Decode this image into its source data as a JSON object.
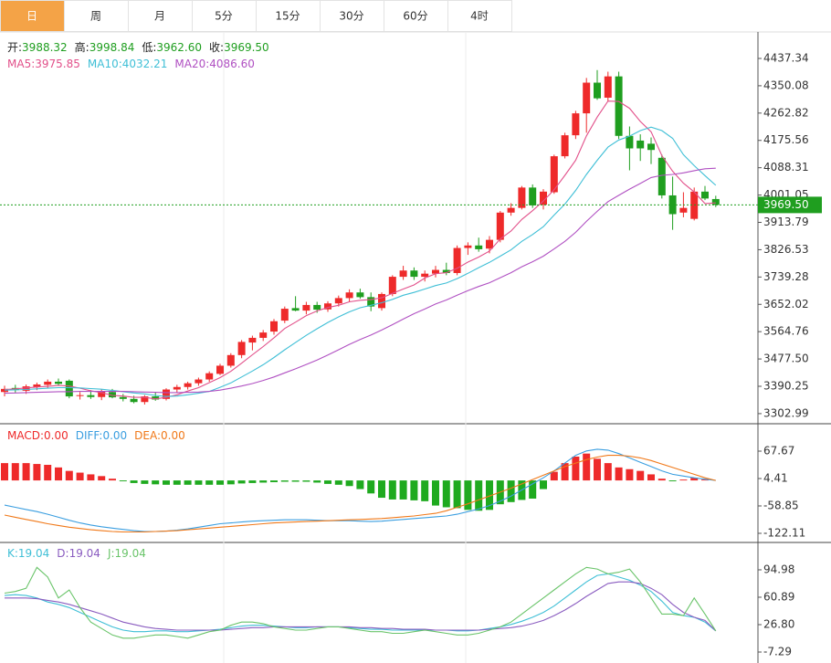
{
  "tabs": [
    "日",
    "周",
    "月",
    "5分",
    "15分",
    "30分",
    "60分",
    "4时"
  ],
  "active_tab": 0,
  "chart_data": [
    {
      "type": "candlestick",
      "up_color": "#ee2a2a",
      "down_color": "#1f9e1f",
      "ylim": [
        3273.6,
        4521.9
      ],
      "yticks": [
        4437.34,
        4350.08,
        4262.82,
        4175.56,
        4088.31,
        4001.05,
        3913.79,
        3826.53,
        3739.28,
        3652.02,
        3564.76,
        {
          "value": 3477.5,
          "label": "3477.50"
        },
        3390.25,
        3302.99
      ],
      "last_price": {
        "value": 3969.5,
        "label": "3969.50"
      },
      "ohlc_legend": [
        {
          "label": "开:",
          "value": "3988.32"
        },
        {
          "label": "高:",
          "value": "3998.84"
        },
        {
          "label": "低:",
          "value": "3962.60"
        },
        {
          "label": "收:",
          "value": "3969.50"
        }
      ],
      "ohlc_legend_color": "#1f9e1f",
      "open": [
        3372,
        3385,
        3376,
        3388,
        3395,
        3405,
        3408,
        3360,
        3362,
        3356,
        3372,
        3356,
        3350,
        3340,
        3358,
        3350,
        3380,
        3388,
        3400,
        3412,
        3430,
        3456,
        3490,
        3530,
        3545,
        3565,
        3600,
        3640,
        3632,
        3650,
        3636,
        3655,
        3672,
        3690,
        3675,
        3640,
        3685,
        3740,
        3760,
        3740,
        3750,
        3762,
        3752,
        3832,
        3840,
        3830,
        3858,
        3945,
        3960,
        4025,
        3970,
        4010,
        4125,
        4192,
        4262,
        4360,
        4312,
        4380,
        4190,
        4175,
        4165,
        4120,
        4000,
        3945,
        3925,
        4012,
        3988.32
      ],
      "high": [
        3392,
        3395,
        3396,
        3402,
        3412,
        3415,
        3412,
        3372,
        3378,
        3380,
        3382,
        3366,
        3360,
        3362,
        3372,
        3384,
        3395,
        3405,
        3418,
        3438,
        3462,
        3496,
        3538,
        3552,
        3570,
        3605,
        3645,
        3678,
        3660,
        3660,
        3662,
        3680,
        3700,
        3702,
        3690,
        3690,
        3745,
        3775,
        3770,
        3760,
        3775,
        3785,
        3840,
        3850,
        3865,
        3870,
        3950,
        3975,
        4030,
        4035,
        4020,
        4130,
        4200,
        4270,
        4375,
        4400,
        4395,
        4395,
        4220,
        4195,
        4185,
        4130,
        4060,
        4010,
        4025,
        4030,
        3998.84
      ],
      "low": [
        3358,
        3370,
        3366,
        3378,
        3385,
        3392,
        3352,
        3348,
        3350,
        3346,
        3352,
        3342,
        3336,
        3332,
        3344,
        3345,
        3370,
        3380,
        3392,
        3405,
        3426,
        3450,
        3480,
        3505,
        3535,
        3555,
        3592,
        3630,
        3620,
        3625,
        3628,
        3645,
        3660,
        3670,
        3630,
        3632,
        3678,
        3730,
        3730,
        3725,
        3738,
        3745,
        3745,
        3810,
        3820,
        3815,
        3850,
        3935,
        3955,
        3960,
        3955,
        4005,
        4118,
        4180,
        4200,
        4305,
        4300,
        4180,
        4080,
        4110,
        4100,
        3990,
        3890,
        3930,
        3920,
        3985,
        3962.6
      ],
      "close": [
        3382,
        3378,
        3390,
        3396,
        3405,
        3398,
        3358,
        3362,
        3356,
        3374,
        3355,
        3350,
        3340,
        3358,
        3348,
        3380,
        3388,
        3400,
        3412,
        3432,
        3456,
        3490,
        3532,
        3545,
        3562,
        3598,
        3638,
        3632,
        3650,
        3635,
        3655,
        3672,
        3690,
        3675,
        3645,
        3685,
        3740,
        3760,
        3740,
        3750,
        3762,
        3752,
        3832,
        3840,
        3828,
        3858,
        3945,
        3960,
        4025,
        3968,
        4012,
        4125,
        4192,
        4262,
        4360,
        4310,
        4380,
        4190,
        4150,
        4150,
        4145,
        4000,
        3940,
        3960,
        4012,
        3990,
        3969.5
      ],
      "series": [
        {
          "label": "MA5:",
          "legend_value": "3975.85",
          "color": "#e2508a",
          "values": [
            3380,
            3382,
            3385,
            3388,
            3390,
            3393,
            3391,
            3384,
            3376,
            3370,
            3361,
            3359,
            3355,
            3355,
            3350,
            3355,
            3363,
            3375,
            3386,
            3402,
            3418,
            3438,
            3464,
            3491,
            3517,
            3545,
            3575,
            3595,
            3616,
            3631,
            3642,
            3649,
            3660,
            3665,
            3667,
            3673,
            3687,
            3701,
            3714,
            3736,
            3750,
            3753,
            3767,
            3787,
            3803,
            3822,
            3861,
            3886,
            3923,
            3951,
            3982,
            4018,
            4064,
            4112,
            4190,
            4250,
            4301,
            4300,
            4278,
            4236,
            4203,
            4127,
            4077,
            4039,
            4011,
            3974,
            3975.85
          ]
        },
        {
          "label": "MA10:",
          "legend_value": "4032.21",
          "color": "#3fbfd6",
          "values": [
            3378,
            3379,
            3380,
            3382,
            3384,
            3386,
            3386,
            3385,
            3383,
            3381,
            3377,
            3373,
            3369,
            3366,
            3361,
            3358,
            3359,
            3363,
            3368,
            3374,
            3387,
            3401,
            3420,
            3439,
            3459,
            3482,
            3507,
            3530,
            3553,
            3574,
            3594,
            3612,
            3628,
            3641,
            3649,
            3657,
            3668,
            3681,
            3690,
            3701,
            3712,
            3720,
            3734,
            3751,
            3769,
            3786,
            3806,
            3826,
            3853,
            3875,
            3900,
            3937,
            3972,
            4016,
            4067,
            4112,
            4154,
            4177,
            4189,
            4207,
            4218,
            4207,
            4182,
            4130,
            4095,
            4063,
            4032.21
          ]
        },
        {
          "label": "MA20:",
          "legend_value": "4086.60",
          "color": "#b050c2",
          "values": [
            3368,
            3369,
            3370,
            3371,
            3372,
            3373,
            3373,
            3374,
            3374,
            3374,
            3374,
            3374,
            3373,
            3372,
            3371,
            3370,
            3370,
            3371,
            3372,
            3374,
            3378,
            3384,
            3391,
            3399,
            3409,
            3420,
            3433,
            3446,
            3460,
            3474,
            3490,
            3507,
            3524,
            3540,
            3554,
            3570,
            3587,
            3605,
            3622,
            3637,
            3653,
            3666,
            3681,
            3696,
            3709,
            3721,
            3737,
            3753,
            3772,
            3788,
            3806,
            3829,
            3853,
            3882,
            3917,
            3949,
            3980,
            4000,
            4020,
            4038,
            4057,
            4064,
            4067,
            4072,
            4079,
            4085,
            4086.6
          ]
        }
      ]
    },
    {
      "type": "macd",
      "ylim": [
        -141.1,
        128.8
      ],
      "yticks": [
        67.67,
        4.41,
        -58.85,
        -122.11
      ],
      "legend": [
        {
          "label": "MACD:",
          "value": "0.00",
          "color": "#ee2a2a"
        },
        {
          "label": "DIFF:",
          "value": "0.00",
          "color": "#3a9ee0"
        },
        {
          "label": "DEA:",
          "value": "0.00",
          "color": "#f07818"
        }
      ],
      "up_color": "#ee2a2a",
      "down_color": "#1faa1f",
      "histogram": [
        40,
        40,
        40,
        38,
        36,
        30,
        22,
        18,
        14,
        10,
        4,
        -2,
        -6,
        -8,
        -9,
        -10,
        -10,
        -10,
        -10,
        -10,
        -10,
        -9,
        -7,
        -6,
        -5,
        -4,
        -3,
        -3,
        -3,
        -5,
        -8,
        -10,
        -13,
        -20,
        -30,
        -40,
        -44,
        -44,
        -46,
        -48,
        -58,
        -62,
        -64,
        -68,
        -70,
        -68,
        -55,
        -50,
        -45,
        -42,
        -20,
        20,
        40,
        55,
        62,
        50,
        40,
        30,
        26,
        22,
        14,
        4,
        -2,
        2,
        6,
        2,
        0
      ],
      "series": [
        {
          "color": "#3a9ee0",
          "values": [
            -57,
            -62,
            -67,
            -72,
            -78,
            -85,
            -92,
            -98,
            -103,
            -107,
            -110,
            -113,
            -116,
            -118,
            -118,
            -117,
            -115,
            -112,
            -108,
            -104,
            -100,
            -98,
            -96,
            -94,
            -93,
            -92,
            -91,
            -91,
            -91,
            -92,
            -93,
            -93,
            -93,
            -94,
            -95,
            -94,
            -92,
            -90,
            -88,
            -86,
            -84,
            -82,
            -78,
            -72,
            -66,
            -58,
            -48,
            -36,
            -22,
            -8,
            6,
            22,
            40,
            58,
            68,
            72,
            70,
            62,
            52,
            42,
            32,
            22,
            14,
            10,
            6,
            3,
            0
          ]
        },
        {
          "color": "#f07818",
          "values": [
            -80,
            -85,
            -90,
            -95,
            -100,
            -104,
            -108,
            -111,
            -114,
            -116,
            -118,
            -119,
            -119,
            -119,
            -118,
            -117,
            -116,
            -114,
            -112,
            -110,
            -108,
            -106,
            -104,
            -102,
            -100,
            -98,
            -97,
            -96,
            -95,
            -94,
            -93,
            -92,
            -91,
            -90,
            -89,
            -88,
            -86,
            -84,
            -82,
            -79,
            -76,
            -70,
            -62,
            -54,
            -45,
            -36,
            -27,
            -18,
            -8,
            2,
            12,
            22,
            32,
            40,
            48,
            54,
            58,
            58,
            56,
            52,
            46,
            38,
            30,
            22,
            14,
            6,
            0
          ]
        }
      ]
    },
    {
      "type": "kdj",
      "ylim": [
        -19.8,
        127.9
      ],
      "yticks": [
        94.98,
        60.89,
        {
          "value": 26.8,
          "label": "26.80"
        },
        -7.29
      ],
      "legend": [
        {
          "label": "K:",
          "value": "19.04",
          "color": "#3fbfd6"
        },
        {
          "label": "D:",
          "value": "19.04",
          "color": "#8a5cc0"
        },
        {
          "label": "J:",
          "value": "19.04",
          "color": "#6ac46a"
        }
      ],
      "series": [
        {
          "color": "#3fbfd6",
          "values": [
            63,
            64,
            63,
            60,
            55,
            52,
            48,
            42,
            36,
            30,
            24,
            20,
            18,
            18,
            19,
            19,
            18,
            18,
            19,
            20,
            21,
            23,
            25,
            26,
            26,
            25,
            24,
            23,
            23,
            24,
            24,
            24,
            23,
            22,
            21,
            21,
            20,
            20,
            20,
            20,
            20,
            20,
            19,
            19,
            20,
            22,
            24,
            27,
            31,
            36,
            42,
            50,
            60,
            70,
            80,
            88,
            90,
            86,
            82,
            76,
            68,
            56,
            42,
            38,
            36,
            30,
            19.04
          ]
        },
        {
          "color": "#8a5cc0",
          "values": [
            60,
            60,
            60,
            59,
            57,
            55,
            52,
            48,
            44,
            40,
            35,
            30,
            27,
            24,
            22,
            21,
            20,
            20,
            20,
            20,
            20,
            21,
            22,
            23,
            23,
            24,
            24,
            24,
            24,
            24,
            24,
            24,
            24,
            23,
            23,
            22,
            22,
            21,
            21,
            21,
            20,
            20,
            20,
            20,
            20,
            21,
            22,
            23,
            25,
            28,
            32,
            38,
            45,
            53,
            62,
            70,
            78,
            80,
            80,
            78,
            72,
            64,
            52,
            42,
            36,
            32,
            19.04
          ]
        },
        {
          "color": "#6ac46a",
          "values": [
            66,
            68,
            72,
            98,
            86,
            60,
            70,
            48,
            30,
            22,
            14,
            10,
            10,
            12,
            14,
            14,
            12,
            10,
            14,
            18,
            20,
            26,
            30,
            30,
            28,
            24,
            22,
            20,
            20,
            22,
            24,
            24,
            22,
            20,
            18,
            18,
            16,
            16,
            18,
            20,
            18,
            16,
            14,
            14,
            16,
            20,
            24,
            30,
            40,
            50,
            60,
            70,
            80,
            90,
            98,
            96,
            90,
            92,
            96,
            80,
            60,
            40,
            40,
            38,
            60,
            40,
            19.04
          ]
        }
      ]
    }
  ]
}
